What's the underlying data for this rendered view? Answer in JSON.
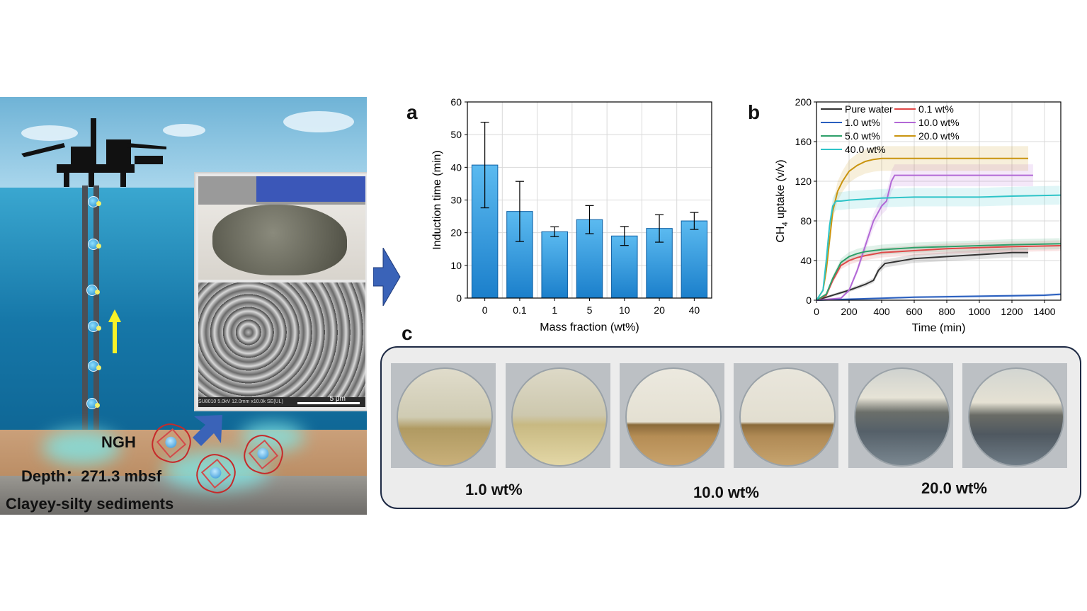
{
  "scene": {
    "ngh_label": "NGH",
    "depth_label": "Depth：271.3 mbsf",
    "sediment_label": "Clayey-silty sediments",
    "sem_info": "SU8010 5.0kV 12.0mm x10.0k SE(UL)",
    "scale_label": "5 μm"
  },
  "panel_letters": {
    "a": "a",
    "b": "b",
    "c": "c"
  },
  "colors": {
    "bar_top": "#5bbaf0",
    "bar_bottom": "#1b7fcb",
    "frame": "#1e2a44",
    "arrow": "#3a63b8"
  },
  "chart_data": [
    {
      "type": "bar",
      "xlabel": "Mass fraction (wt%)",
      "ylabel": "Induction time (min)",
      "ylim": [
        0,
        60
      ],
      "yticks": [
        "0",
        "10",
        "20",
        "30",
        "40",
        "50",
        "60"
      ],
      "categories": [
        "0",
        "0.1",
        "1",
        "5",
        "10",
        "20",
        "40"
      ],
      "values": [
        40.7,
        26.5,
        20.3,
        24.0,
        19.0,
        21.3,
        23.6
      ],
      "errors": [
        13.1,
        9.2,
        1.5,
        4.3,
        2.9,
        4.2,
        2.6
      ],
      "grid": true
    },
    {
      "type": "line",
      "xlabel": "Time (min)",
      "ylabel": "uptake (v/v)",
      "ylabel_prefix": "CH",
      "ylabel_sub": "4",
      "xlim": [
        0,
        1500
      ],
      "ylim": [
        0,
        200
      ],
      "xticks": [
        "0",
        "200",
        "400",
        "600",
        "800",
        "1000",
        "1200",
        "1400"
      ],
      "yticks": [
        "0",
        "40",
        "80",
        "120",
        "160",
        "200"
      ],
      "grid": true,
      "legend_position": "top-left",
      "series": [
        {
          "name": "Pure water",
          "color": "#333333",
          "x": [
            0,
            60,
            120,
            200,
            300,
            350,
            380,
            420,
            600,
            800,
            1000,
            1200,
            1300
          ],
          "y": [
            0,
            3,
            6,
            10,
            16,
            20,
            30,
            37,
            42,
            44,
            46,
            48,
            48
          ]
        },
        {
          "name": "0.1 wt%",
          "color": "#e04848",
          "x": [
            0,
            60,
            100,
            150,
            200,
            250,
            300,
            400,
            600,
            800,
            1000,
            1200,
            1500
          ],
          "y": [
            0,
            5,
            20,
            35,
            40,
            43,
            45,
            48,
            50,
            52,
            53,
            54,
            55
          ]
        },
        {
          "name": "1.0 wt%",
          "color": "#2a5fbf",
          "x": [
            0,
            200,
            400,
            600,
            800,
            1000,
            1200,
            1400,
            1500
          ],
          "y": [
            0,
            1,
            2,
            3,
            3.5,
            4,
            4.5,
            5,
            6
          ]
        },
        {
          "name": "10.0 wt%",
          "color": "#b268d6",
          "x": [
            0,
            150,
            200,
            250,
            300,
            350,
            400,
            430,
            460,
            480,
            600,
            800,
            1000,
            1200,
            1330
          ],
          "y": [
            0,
            2,
            10,
            30,
            55,
            80,
            95,
            100,
            120,
            126,
            126,
            126,
            126,
            126,
            126
          ]
        },
        {
          "name": "5.0 wt%",
          "color": "#2ea06a",
          "x": [
            0,
            60,
            100,
            150,
            200,
            250,
            300,
            400,
            600,
            800,
            1000,
            1200,
            1500
          ],
          "y": [
            0,
            6,
            22,
            38,
            44,
            47,
            49,
            51,
            53,
            54,
            55,
            56,
            57
          ]
        },
        {
          "name": "20.0 wt%",
          "color": "#c9940f",
          "x": [
            0,
            40,
            60,
            80,
            100,
            130,
            160,
            200,
            250,
            300,
            350,
            400,
            600,
            800,
            1000,
            1200,
            1300
          ],
          "y": [
            0,
            10,
            30,
            60,
            90,
            110,
            120,
            130,
            136,
            140,
            142,
            143,
            143,
            143,
            143,
            143,
            143
          ]
        },
        {
          "name": "40.0 wt%",
          "color": "#2ec4c8",
          "x": [
            0,
            40,
            60,
            80,
            100,
            120,
            150,
            200,
            300,
            400,
            600,
            800,
            1000,
            1200,
            1500
          ],
          "y": [
            0,
            10,
            40,
            75,
            95,
            100,
            100,
            101,
            102,
            103,
            104,
            104,
            104,
            105,
            106
          ]
        }
      ]
    }
  ],
  "panel_c": {
    "captions": [
      "1.0 wt%",
      "10.0 wt%",
      "20.0 wt%"
    ]
  }
}
